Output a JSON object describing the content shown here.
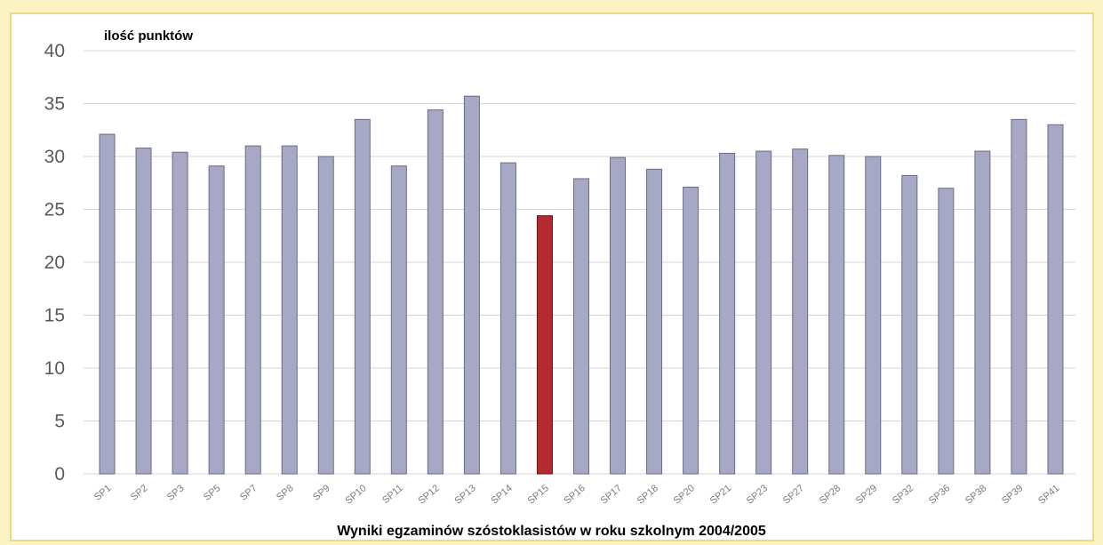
{
  "chart_data": {
    "type": "bar",
    "ylabel": "ilość punktów",
    "caption": "Wyniki egzaminów szóstoklasistów w roku szkolnym 2004/2005",
    "ylim": [
      0,
      40
    ],
    "yticks": [
      0,
      5,
      10,
      15,
      20,
      25,
      30,
      35,
      40
    ],
    "grid": true,
    "categories": [
      "SP1",
      "SP2",
      "SP3",
      "SP5",
      "SP7",
      "SP8",
      "SP9",
      "SP10",
      "SP11",
      "SP12",
      "SP13",
      "SP14",
      "SP15",
      "SP16",
      "SP17",
      "SP18",
      "SP20",
      "SP21",
      "SP23",
      "SP27",
      "SP28",
      "SP29",
      "SP32",
      "SP36",
      "SP38",
      "SP39",
      "SP41"
    ],
    "values": [
      32.1,
      30.8,
      30.4,
      29.1,
      31.0,
      31.0,
      30.0,
      33.5,
      29.1,
      34.4,
      35.7,
      29.4,
      24.4,
      27.9,
      29.9,
      28.8,
      27.1,
      30.3,
      30.5,
      30.7,
      30.1,
      30.0,
      28.2,
      27.0,
      30.5,
      33.5,
      33.0
    ],
    "colors": {
      "bar": "#a7a8c6",
      "bar_edge": "#6a6b86",
      "highlight": "#b32a2f",
      "highlight_edge": "#6e1216",
      "grid": "#d4d4d4"
    },
    "highlight_category": "SP15"
  }
}
